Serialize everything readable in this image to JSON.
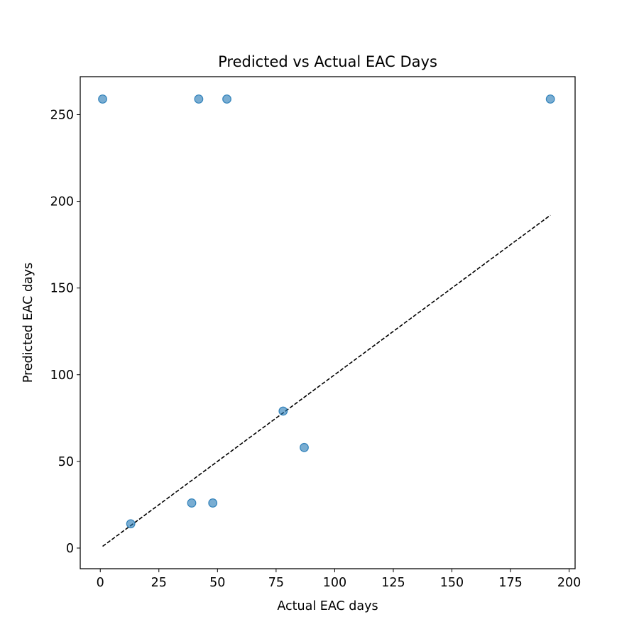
{
  "chart_data": {
    "type": "scatter",
    "title": "Predicted vs Actual EAC Days",
    "xlabel": "Actual EAC days",
    "ylabel": "Predicted EAC days",
    "xlim": [
      -8.55,
      202.55
    ],
    "ylim": [
      -11.9,
      271.9
    ],
    "xticks": [
      0,
      25,
      50,
      75,
      100,
      125,
      150,
      175,
      200
    ],
    "yticks": [
      0,
      50,
      100,
      150,
      200,
      250
    ],
    "grid": false,
    "legend": "none",
    "points": [
      {
        "x": 1,
        "y": 259
      },
      {
        "x": 42,
        "y": 259
      },
      {
        "x": 54,
        "y": 259
      },
      {
        "x": 192,
        "y": 259
      },
      {
        "x": 78,
        "y": 79
      },
      {
        "x": 87,
        "y": 58
      },
      {
        "x": 13,
        "y": 14
      },
      {
        "x": 39,
        "y": 26
      },
      {
        "x": 48,
        "y": 26
      }
    ],
    "reference_line": {
      "x": [
        1,
        192
      ],
      "y": [
        1,
        192
      ],
      "style": "dashed",
      "color": "#000000"
    },
    "marker_color": "#1f77b4"
  }
}
